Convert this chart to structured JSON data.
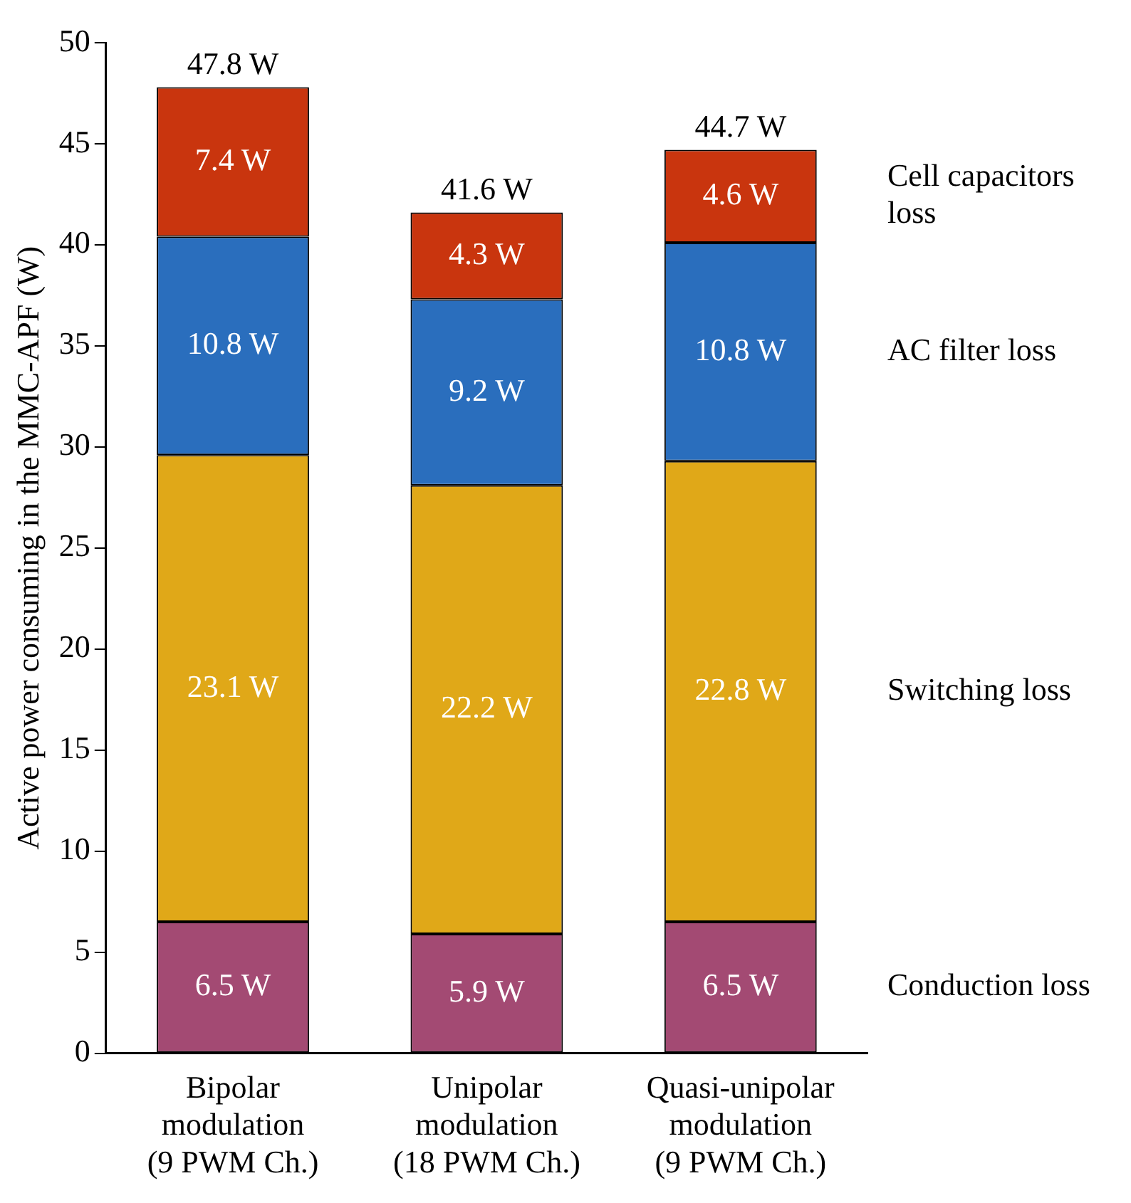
{
  "chart_data": {
    "type": "bar",
    "stacked": true,
    "ylabel": "Active power consuming in the MMC-APF (W)",
    "categories": [
      "Bipolar\nmodulation\n(9 PWM Ch.)",
      "Unipolar\nmodulation\n(18 PWM Ch.)",
      "Quasi-unipolar\nmodulation\n(9 PWM Ch.)"
    ],
    "series": [
      {
        "name": "Conduction loss",
        "color": "#a34a73",
        "values": [
          6.5,
          5.9,
          6.5
        ],
        "value_labels": [
          "6.5 W",
          "5.9 W",
          "6.5 W"
        ]
      },
      {
        "name": "Switching loss",
        "color": "#e0a818",
        "values": [
          23.1,
          22.2,
          22.8
        ],
        "value_labels": [
          "23.1 W",
          "22.2 W",
          "22.8 W"
        ]
      },
      {
        "name": "AC filter loss",
        "color": "#2a6ebd",
        "values": [
          10.8,
          9.2,
          10.8
        ],
        "value_labels": [
          "10.8 W",
          "9.2 W",
          "10.8 W"
        ]
      },
      {
        "name": "Cell capacitors loss",
        "color": "#c9350e",
        "values": [
          7.4,
          4.3,
          4.6
        ],
        "value_labels": [
          "7.4 W",
          "4.3 W",
          "4.6 W"
        ]
      }
    ],
    "totals": [
      "47.8 W",
      "41.6 W",
      "44.7 W"
    ],
    "ylim": [
      0,
      50
    ],
    "yticks": [
      0,
      5,
      10,
      15,
      20,
      25,
      30,
      35,
      40,
      45,
      50
    ],
    "grid": false,
    "legend": false
  }
}
